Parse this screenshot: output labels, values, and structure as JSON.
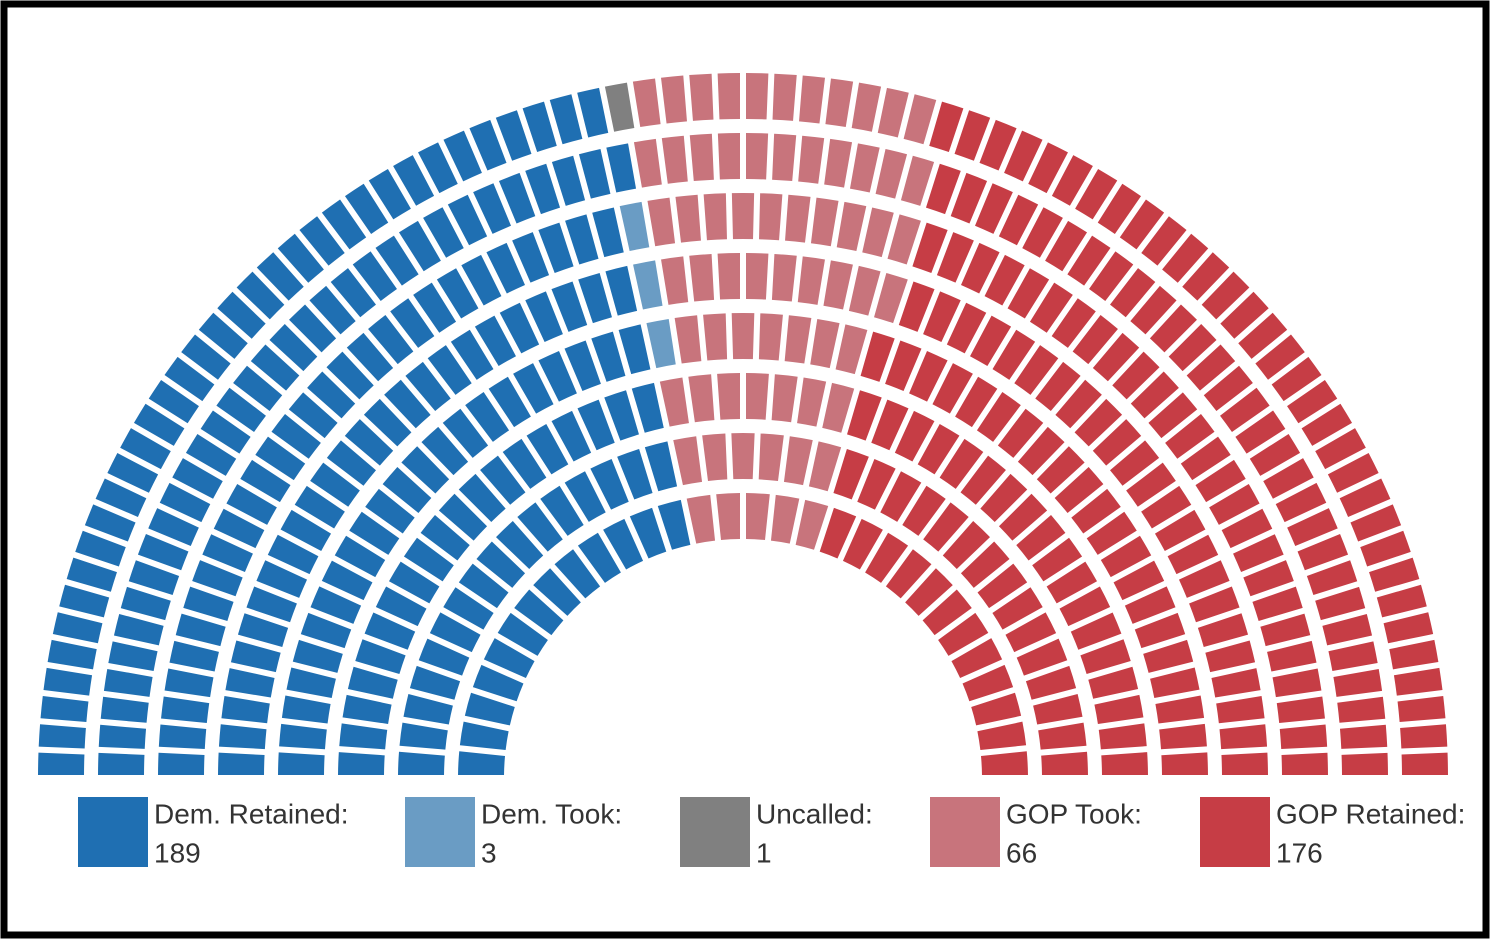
{
  "chart_data": {
    "type": "parliament",
    "categories": [
      "Dem. Retained:",
      "Dem. Took:",
      "Uncalled:",
      "GOP Took:",
      "GOP Retained:"
    ],
    "values": [
      189,
      3,
      1,
      66,
      176
    ],
    "colors": [
      "#1f6fb2",
      "#6a9cc4",
      "#808080",
      "#c8747c",
      "#c63d45"
    ]
  }
}
